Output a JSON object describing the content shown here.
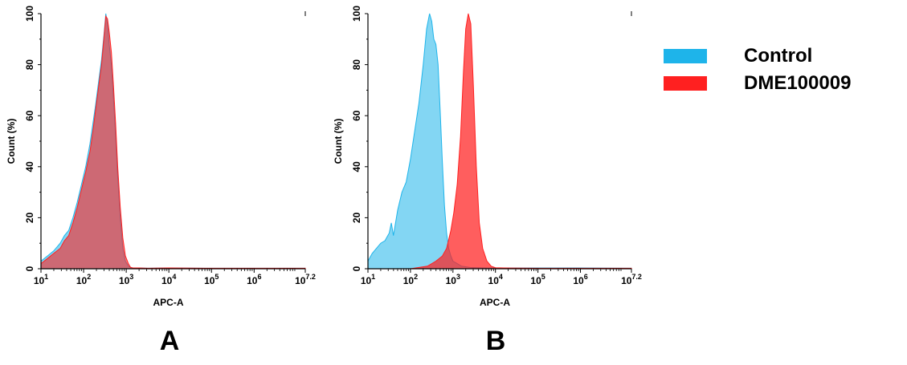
{
  "chart_data": [
    {
      "type": "area",
      "panel_label": "A",
      "xlabel": "APC-A",
      "ylabel": "Count  (%)",
      "xscale": "log10",
      "xlim": [
        1,
        7.2
      ],
      "ylim": [
        0,
        100
      ],
      "x_ticks": [
        {
          "base": "10",
          "exp": "1"
        },
        {
          "base": "10",
          "exp": "2"
        },
        {
          "base": "10",
          "exp": "3"
        },
        {
          "base": "10",
          "exp": "4"
        },
        {
          "base": "10",
          "exp": "5"
        },
        {
          "base": "10",
          "exp": "6"
        },
        {
          "base": "10",
          "exp": "7.2"
        }
      ],
      "y_ticks": [
        "0",
        "20",
        "40",
        "60",
        "80",
        "100"
      ],
      "series": [
        {
          "name": "Control",
          "color": "#1eb4ea",
          "x": [
            1.0,
            1.15,
            1.3,
            1.45,
            1.55,
            1.65,
            1.75,
            1.85,
            1.95,
            2.05,
            2.15,
            2.22,
            2.28,
            2.35,
            2.42,
            2.48,
            2.52,
            2.56,
            2.6,
            2.65,
            2.7,
            2.75,
            2.8,
            2.86,
            2.92,
            2.98,
            3.05,
            3.1,
            3.15,
            3.2,
            3.3,
            3.5,
            4.0,
            5.0,
            6.0,
            7.2
          ],
          "y": [
            3,
            5,
            7,
            10,
            13,
            15,
            20,
            26,
            33,
            40,
            49,
            57,
            64,
            73,
            82,
            92,
            100,
            96,
            88,
            80,
            67,
            52,
            36,
            20,
            8,
            3,
            1,
            0.5,
            0.3,
            0.3,
            0.3,
            0.2,
            0.3,
            0.2,
            0.2,
            0.2
          ]
        },
        {
          "name": "DME100009",
          "color": "#ff2020",
          "x": [
            1.0,
            1.15,
            1.3,
            1.45,
            1.55,
            1.65,
            1.75,
            1.85,
            1.95,
            2.05,
            2.15,
            2.22,
            2.28,
            2.35,
            2.42,
            2.48,
            2.52,
            2.56,
            2.6,
            2.65,
            2.7,
            2.75,
            2.8,
            2.86,
            2.92,
            2.98,
            3.05,
            3.1,
            3.15,
            3.2,
            3.3,
            3.5,
            4.0,
            5.0,
            6.0,
            7.2
          ],
          "y": [
            2,
            4,
            6,
            8,
            11,
            13,
            18,
            24,
            31,
            38,
            46,
            54,
            62,
            71,
            80,
            91,
            99,
            98,
            93,
            85,
            72,
            57,
            40,
            24,
            12,
            5,
            2,
            0.6,
            0.3,
            0.3,
            0.3,
            0.2,
            0.3,
            0.2,
            0.2,
            0.2
          ]
        }
      ]
    },
    {
      "type": "area",
      "panel_label": "B",
      "xlabel": "APC-A",
      "ylabel": "Count  (%)",
      "xscale": "log10",
      "xlim": [
        1,
        7.2
      ],
      "ylim": [
        0,
        100
      ],
      "x_ticks": [
        {
          "base": "10",
          "exp": "1"
        },
        {
          "base": "10",
          "exp": "2"
        },
        {
          "base": "10",
          "exp": "3"
        },
        {
          "base": "10",
          "exp": "4"
        },
        {
          "base": "10",
          "exp": "5"
        },
        {
          "base": "10",
          "exp": "6"
        },
        {
          "base": "10",
          "exp": "7.2"
        }
      ],
      "y_ticks": [
        "0",
        "20",
        "40",
        "60",
        "80",
        "100"
      ],
      "series": [
        {
          "name": "Control",
          "color": "#1eb4ea",
          "x": [
            1.0,
            1.1,
            1.2,
            1.3,
            1.4,
            1.5,
            1.55,
            1.6,
            1.7,
            1.8,
            1.9,
            2.0,
            2.1,
            2.2,
            2.3,
            2.38,
            2.45,
            2.5,
            2.55,
            2.6,
            2.65,
            2.7,
            2.75,
            2.8,
            2.85,
            2.9,
            2.95,
            3.0,
            3.1,
            3.2,
            3.4,
            3.8,
            4.2,
            5.0,
            6.0,
            7.2
          ],
          "y": [
            3,
            6,
            8,
            10,
            11,
            14,
            18,
            13,
            23,
            30,
            34,
            43,
            54,
            65,
            80,
            94,
            100,
            97,
            90,
            88,
            80,
            62,
            42,
            25,
            14,
            8,
            5,
            3,
            2,
            1,
            0.5,
            0.3,
            0.3,
            0.3,
            0.3,
            0.2
          ]
        },
        {
          "name": "DME100009",
          "color": "#ff2020",
          "x": [
            1.0,
            2.0,
            2.4,
            2.6,
            2.75,
            2.85,
            2.95,
            3.02,
            3.1,
            3.18,
            3.25,
            3.3,
            3.36,
            3.42,
            3.48,
            3.55,
            3.62,
            3.7,
            3.8,
            3.9,
            4.0,
            4.2,
            5.0,
            6.0,
            7.2
          ],
          "y": [
            0,
            0,
            1,
            3,
            5,
            8,
            15,
            22,
            33,
            52,
            78,
            94,
            100,
            96,
            72,
            40,
            18,
            8,
            3,
            1,
            0.4,
            0.3,
            0.2,
            0.2,
            0.2
          ]
        }
      ]
    }
  ],
  "legend": [
    {
      "label": "Control",
      "color": "#1eb4ea"
    },
    {
      "label": "DME100009",
      "color": "#ff2020"
    }
  ]
}
